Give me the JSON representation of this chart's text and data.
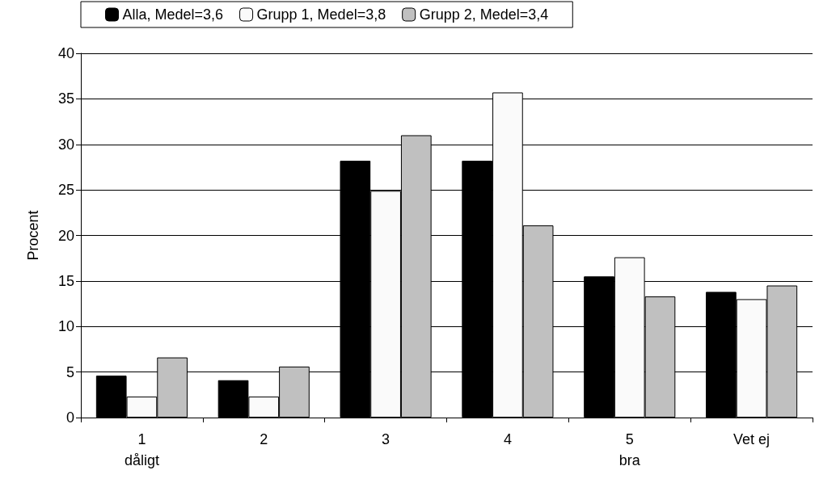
{
  "chart_data": {
    "type": "bar",
    "ylabel": "Procent",
    "categories": [
      "1\ndåligt",
      "2",
      "3",
      "4",
      "5\nbra",
      "Vet ej"
    ],
    "series": [
      {
        "name": "Alla, Medel=3,6",
        "color": "#000000",
        "values": [
          4.6,
          4.1,
          28.2,
          28.2,
          15.5,
          13.8
        ]
      },
      {
        "name": "Grupp 1, Medel=3,8",
        "color": "#fafafa",
        "values": [
          2.3,
          2.3,
          24.9,
          35.7,
          17.6,
          13.0
        ]
      },
      {
        "name": "Grupp 2, Medel=3,4",
        "color": "#c0c0c0",
        "values": [
          6.6,
          5.6,
          31.0,
          21.1,
          13.3,
          14.5
        ]
      }
    ],
    "ylim": [
      0,
      40
    ],
    "yticks": [
      0,
      5,
      10,
      15,
      20,
      25,
      30,
      35,
      40
    ],
    "grid": "y",
    "legend": "top"
  }
}
